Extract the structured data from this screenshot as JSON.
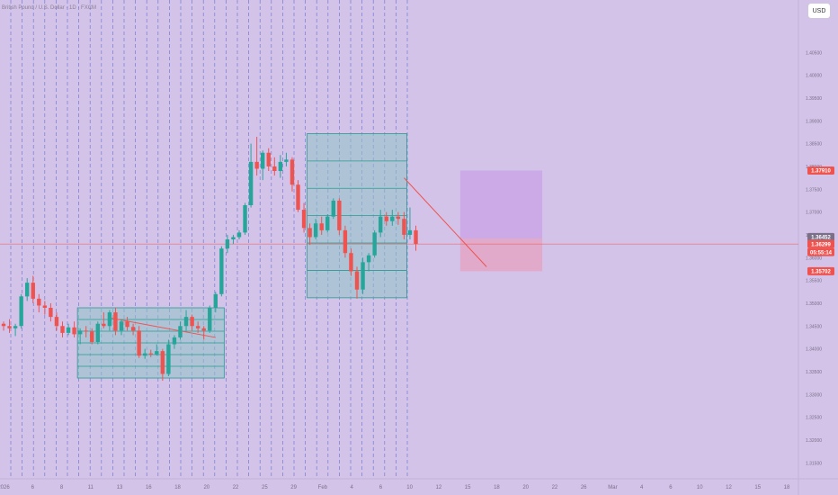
{
  "legend": "British Pound / U.S. Dollar · 1D · FXCM",
  "currency_button": "USD",
  "colors": {
    "background": "#d3c3e8",
    "up": "#26a69a",
    "down": "#ef5350",
    "box_fill": "#8fc3c4",
    "box_border": "#2a9a90",
    "target_zone": "#c9a6e6",
    "stop_zone": "#e6a2c0",
    "trend_line": "#ef5350",
    "price_line": "#ef5350",
    "vline": "#5a6ad0"
  },
  "chart_data": {
    "type": "candlestick",
    "y_axis": {
      "position": "right",
      "range": [
        1.3115,
        1.4165
      ],
      "ticks": [
        "1.40500",
        "1.40000",
        "1.39500",
        "1.39000",
        "1.38500",
        "1.38000",
        "1.37500",
        "1.37000",
        "1.36500",
        "1.36000",
        "1.35500",
        "1.35000",
        "1.34500",
        "1.34000",
        "1.33500",
        "1.33000",
        "1.32500",
        "1.32000",
        "1.31500"
      ]
    },
    "x_axis": {
      "ticks": [
        "2026",
        "6",
        "8",
        "11",
        "13",
        "16",
        "18",
        "20",
        "22",
        "25",
        "29",
        "Feb",
        "4",
        "6",
        "10",
        "12",
        "15",
        "18",
        "20",
        "22",
        "26",
        "Mar",
        "4",
        "6",
        "10",
        "12",
        "15",
        "18"
      ]
    },
    "price_badges": [
      {
        "label": "1.37910",
        "value": 1.3791,
        "color": "#ef5350"
      },
      {
        "label": "1.36452",
        "value": 1.36452,
        "color": "#7b7088"
      },
      {
        "label": "1.36299",
        "value": 1.36299,
        "color": "#ef5350"
      },
      {
        "label": "05:55:14",
        "value": null,
        "color": "#ef5350"
      },
      {
        "label": "1.35702",
        "value": 1.35702,
        "color": "#ef5350"
      }
    ],
    "current_price": 1.36299,
    "consolidation_boxes": [
      {
        "start": 13,
        "end": 37,
        "high": 1.349,
        "low": 1.3336
      },
      {
        "start": 52,
        "end": 68,
        "high": 1.3872,
        "low": 1.3512
      }
    ],
    "trend_lines": [
      {
        "from": [
          18,
          1.3468
        ],
        "to": [
          36,
          1.3425
        ]
      },
      {
        "from": [
          68,
          1.3775
        ],
        "to": [
          82,
          1.358
        ]
      }
    ],
    "position_zones": {
      "start": 78,
      "end": 91,
      "entry": 1.3642,
      "target": 1.3791,
      "stop": 1.35702
    },
    "candles": [
      [
        1.3455,
        1.346,
        1.344,
        1.345
      ],
      [
        1.345,
        1.3465,
        1.3435,
        1.3445
      ],
      [
        1.3445,
        1.3455,
        1.3428,
        1.345
      ],
      [
        1.345,
        1.352,
        1.3445,
        1.3515
      ],
      [
        1.3515,
        1.3555,
        1.3505,
        1.3545
      ],
      [
        1.3545,
        1.356,
        1.35,
        1.351
      ],
      [
        1.351,
        1.352,
        1.348,
        1.3495
      ],
      [
        1.3495,
        1.3505,
        1.3475,
        1.349
      ],
      [
        1.349,
        1.35,
        1.346,
        1.347
      ],
      [
        1.347,
        1.348,
        1.344,
        1.345
      ],
      [
        1.345,
        1.346,
        1.3425,
        1.3435
      ],
      [
        1.3435,
        1.3455,
        1.343,
        1.3447
      ],
      [
        1.3447,
        1.346,
        1.3425,
        1.3432
      ],
      [
        1.3432,
        1.3445,
        1.341,
        1.344
      ],
      [
        1.344,
        1.345,
        1.3425,
        1.3438
      ],
      [
        1.3438,
        1.3445,
        1.341,
        1.3415
      ],
      [
        1.3415,
        1.346,
        1.341,
        1.3455
      ],
      [
        1.3455,
        1.348,
        1.3445,
        1.345
      ],
      [
        1.345,
        1.3485,
        1.344,
        1.348
      ],
      [
        1.348,
        1.349,
        1.343,
        1.344
      ],
      [
        1.344,
        1.3465,
        1.343,
        1.346
      ],
      [
        1.346,
        1.347,
        1.344,
        1.3448
      ],
      [
        1.3448,
        1.3455,
        1.343,
        1.344
      ],
      [
        1.344,
        1.345,
        1.338,
        1.3385
      ],
      [
        1.3385,
        1.34,
        1.3378,
        1.339
      ],
      [
        1.339,
        1.3398,
        1.3382,
        1.3388
      ],
      [
        1.3388,
        1.341,
        1.3385,
        1.3395
      ],
      [
        1.3395,
        1.34,
        1.333,
        1.3345
      ],
      [
        1.3345,
        1.342,
        1.334,
        1.341
      ],
      [
        1.341,
        1.343,
        1.34,
        1.3425
      ],
      [
        1.3425,
        1.346,
        1.342,
        1.345
      ],
      [
        1.345,
        1.3485,
        1.344,
        1.347
      ],
      [
        1.347,
        1.3475,
        1.344,
        1.345
      ],
      [
        1.345,
        1.346,
        1.3435,
        1.3445
      ],
      [
        1.3445,
        1.345,
        1.342,
        1.344
      ],
      [
        1.344,
        1.3495,
        1.3435,
        1.349
      ],
      [
        1.349,
        1.3525,
        1.348,
        1.352
      ],
      [
        1.352,
        1.3625,
        1.3515,
        1.362
      ],
      [
        1.362,
        1.365,
        1.361,
        1.364
      ],
      [
        1.364,
        1.365,
        1.363,
        1.3645
      ],
      [
        1.3645,
        1.366,
        1.364,
        1.3655
      ],
      [
        1.3655,
        1.372,
        1.365,
        1.3715
      ],
      [
        1.3715,
        1.385,
        1.371,
        1.381
      ],
      [
        1.381,
        1.3865,
        1.378,
        1.3795
      ],
      [
        1.3795,
        1.3835,
        1.377,
        1.383
      ],
      [
        1.383,
        1.384,
        1.379,
        1.38
      ],
      [
        1.38,
        1.382,
        1.378,
        1.379
      ],
      [
        1.379,
        1.3825,
        1.3775,
        1.381
      ],
      [
        1.381,
        1.383,
        1.38,
        1.3815
      ],
      [
        1.3815,
        1.382,
        1.3745,
        1.376
      ],
      [
        1.376,
        1.377,
        1.37,
        1.3705
      ],
      [
        1.3705,
        1.372,
        1.3655,
        1.3665
      ],
      [
        1.3665,
        1.3675,
        1.3628,
        1.3645
      ],
      [
        1.3645,
        1.3685,
        1.364,
        1.3675
      ],
      [
        1.3675,
        1.369,
        1.365,
        1.366
      ],
      [
        1.366,
        1.3695,
        1.3655,
        1.369
      ],
      [
        1.369,
        1.373,
        1.3685,
        1.3725
      ],
      [
        1.3725,
        1.373,
        1.365,
        1.366
      ],
      [
        1.366,
        1.367,
        1.36,
        1.361
      ],
      [
        1.361,
        1.362,
        1.356,
        1.357
      ],
      [
        1.357,
        1.358,
        1.351,
        1.353
      ],
      [
        1.353,
        1.36,
        1.352,
        1.359
      ],
      [
        1.359,
        1.361,
        1.357,
        1.3605
      ],
      [
        1.3605,
        1.366,
        1.36,
        1.3655
      ],
      [
        1.3655,
        1.3705,
        1.3645,
        1.369
      ],
      [
        1.369,
        1.37,
        1.367,
        1.368
      ],
      [
        1.368,
        1.3705,
        1.367,
        1.369
      ],
      [
        1.369,
        1.37,
        1.3672,
        1.3685
      ],
      [
        1.3685,
        1.37,
        1.364,
        1.365
      ],
      [
        1.365,
        1.371,
        1.364,
        1.366
      ],
      [
        1.366,
        1.367,
        1.3615,
        1.363
      ]
    ]
  }
}
